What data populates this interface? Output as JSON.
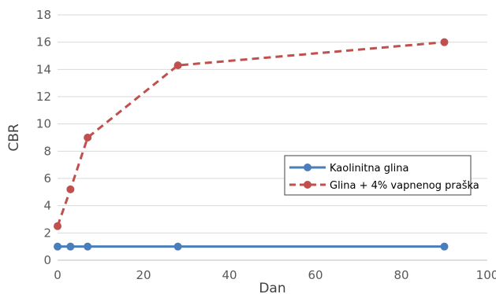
{
  "chart_data": {
    "type": "line",
    "xlabel": "Dan",
    "ylabel": "CBR",
    "xlim": [
      0,
      100
    ],
    "ylim": [
      0,
      18
    ],
    "xticks": [
      0,
      20,
      40,
      60,
      80,
      100
    ],
    "yticks": [
      0,
      2,
      4,
      6,
      8,
      10,
      12,
      14,
      16,
      18
    ],
    "grid": "horizontal",
    "legend_position": "right",
    "series": [
      {
        "name": "Kaolinitna glina",
        "color": "#4a7ebb",
        "line_style": "solid",
        "marker": "circle",
        "x": [
          0,
          3,
          7,
          28,
          90
        ],
        "y": [
          1,
          1,
          1,
          1,
          1
        ]
      },
      {
        "name": "Glina + 4% vapnenog praška",
        "color": "#c0504d",
        "line_style": "dashed",
        "marker": "circle",
        "x": [
          0,
          3,
          7,
          28,
          90
        ],
        "y": [
          2.5,
          5.2,
          9.0,
          14.3,
          16.0
        ]
      }
    ]
  }
}
